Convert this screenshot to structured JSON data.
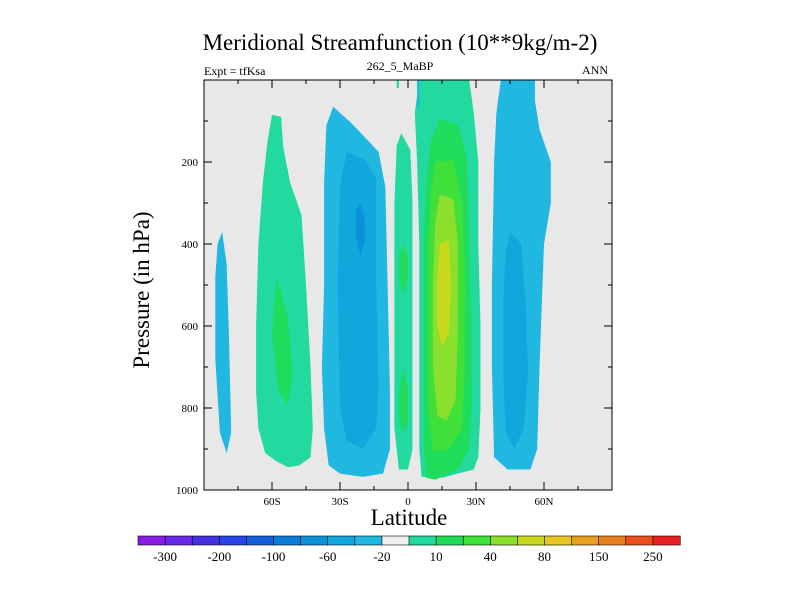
{
  "chart_data": {
    "type": "filled-contour",
    "title": "Meridional Streamfunction (10**9kg/m-2)",
    "left_label": "Expt = tfKsa",
    "center_label": "262_5_MaBP",
    "right_label": "ANN",
    "xlabel": "Latitude",
    "ylabel": "Pressure (in hPa)",
    "xlim": [
      -90,
      90
    ],
    "ylim": [
      1000,
      0
    ],
    "x_ticks": [
      {
        "value": -60,
        "label": "60S"
      },
      {
        "value": -30,
        "label": "30S"
      },
      {
        "value": 0,
        "label": "0"
      },
      {
        "value": 30,
        "label": "30N"
      },
      {
        "value": 60,
        "label": "60N"
      }
    ],
    "y_ticks": [
      {
        "value": 200,
        "label": "200"
      },
      {
        "value": 400,
        "label": "400"
      },
      {
        "value": 600,
        "label": "600"
      },
      {
        "value": 800,
        "label": "800"
      },
      {
        "value": 1000,
        "label": "1000"
      }
    ],
    "contour_levels": [
      -300,
      -250,
      -200,
      -150,
      -100,
      -80,
      -60,
      -40,
      -20,
      -10,
      10,
      20,
      40,
      60,
      80,
      100,
      150,
      200,
      250,
      300
    ],
    "colorbar_labels": [
      "-300",
      "-200",
      "-100",
      "-60",
      "-20",
      "10",
      "40",
      "80",
      "150",
      "250"
    ],
    "colorbar_colors": [
      "#8a1ae6",
      "#6a28e8",
      "#4530e0",
      "#2a44e8",
      "#1560d8",
      "#0b7bd8",
      "#0b93d8",
      "#10a8dc",
      "#20b8e0",
      "#eeeeee",
      "#22d9a0",
      "#1fdc5a",
      "#3fe03a",
      "#8ae02c",
      "#c8d81c",
      "#e8c820",
      "#e8a020",
      "#e88020",
      "#ea5020",
      "#e82020"
    ],
    "background_color": "#e8e8e8",
    "regions": [
      {
        "name": "southern-polar-cell",
        "sign": "negative",
        "lat_range": [
          -85,
          -80
        ],
        "pressure_range": [
          370,
          910
        ],
        "peak_level": "-10 to -20"
      },
      {
        "name": "southern-ferrel-cell",
        "sign": "positive",
        "lat_range": [
          -68,
          -42
        ],
        "pressure_range": [
          80,
          950
        ],
        "peak_level": "10 to 20"
      },
      {
        "name": "southern-hadley-cell",
        "sign": "negative",
        "lat_range": [
          -38,
          -8
        ],
        "pressure_range": [
          60,
          960
        ],
        "peak_level": "-40 to -60"
      },
      {
        "name": "equatorial-positive-cell",
        "sign": "positive",
        "lat_range": [
          -6,
          2
        ],
        "pressure_range": [
          130,
          950
        ],
        "peak_level": "20 to 40"
      },
      {
        "name": "northern-hadley-cell",
        "sign": "positive",
        "lat_range": [
          5,
          32
        ],
        "pressure_range": [
          0,
          980
        ],
        "peak_level": "60 to 80"
      },
      {
        "name": "northern-ferrel-cell",
        "sign": "negative",
        "lat_range": [
          37,
          62
        ],
        "pressure_range": [
          0,
          955
        ],
        "peak_level": "-40 to -60"
      }
    ]
  }
}
